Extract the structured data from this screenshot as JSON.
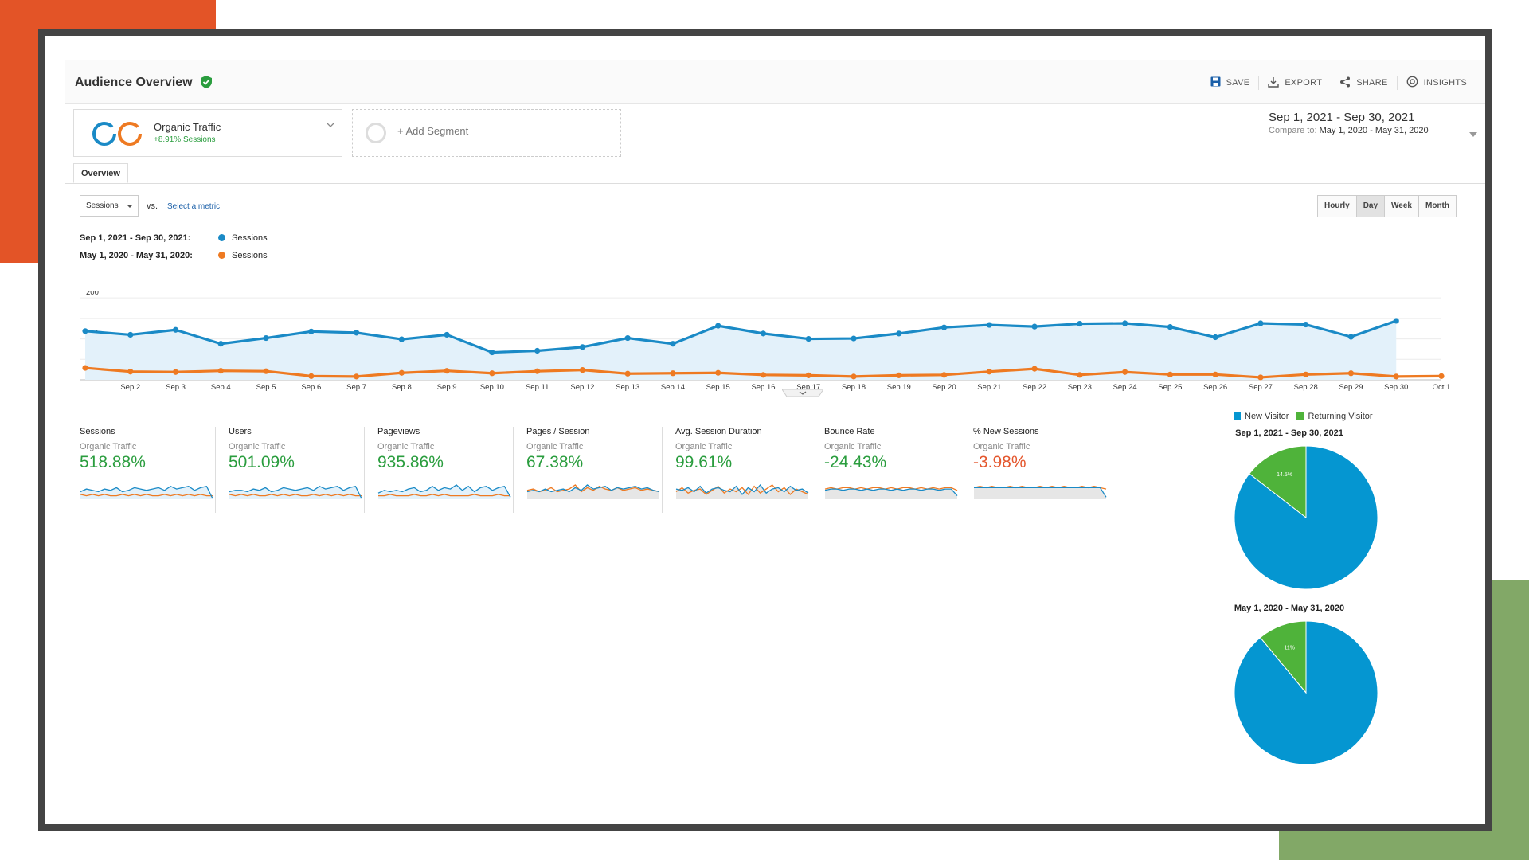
{
  "header": {
    "title": "Audience Overview",
    "toolbar": {
      "save": "SAVE",
      "export": "EXPORT",
      "share": "SHARE",
      "insights": "INSIGHTS"
    }
  },
  "segment": {
    "name": "Organic Traffic",
    "sub": "+8.91% Sessions",
    "add_label": "+ Add Segment"
  },
  "date_range": {
    "main": "Sep 1, 2021 - Sep 30, 2021",
    "compare_label": "Compare to:",
    "compare_value": "May 1, 2020 - May 31, 2020"
  },
  "tabs": [
    {
      "label": "Overview",
      "active": true
    }
  ],
  "controls": {
    "metric": "Sessions",
    "vs": "vs.",
    "select_metric": "Select a metric",
    "time_buttons": [
      {
        "label": "Hourly"
      },
      {
        "label": "Day",
        "active": true
      },
      {
        "label": "Week"
      },
      {
        "label": "Month"
      }
    ]
  },
  "colors": {
    "current": "#1a8ac6",
    "previous": "#ee7a22",
    "new_visitor": "#0596d1",
    "returning_visitor": "#4fb33a",
    "positive": "#2a9d3e",
    "negative": "#e4572e"
  },
  "chart_legend": [
    {
      "period": "Sep 1, 2021 - Sep 30, 2021:",
      "series": "Sessions",
      "color": "#1a8ac6"
    },
    {
      "period": "May 1, 2020 - May 31, 2020:",
      "series": "Sessions",
      "color": "#ee7a22"
    }
  ],
  "chart_data": [
    {
      "type": "line",
      "categories": [
        "...",
        "Sep 2",
        "Sep 3",
        "Sep 4",
        "Sep 5",
        "Sep 6",
        "Sep 7",
        "Sep 8",
        "Sep 9",
        "Sep 10",
        "Sep 11",
        "Sep 12",
        "Sep 13",
        "Sep 14",
        "Sep 15",
        "Sep 16",
        "Sep 17",
        "Sep 18",
        "Sep 19",
        "Sep 20",
        "Sep 21",
        "Sep 22",
        "Sep 23",
        "Sep 24",
        "Sep 25",
        "Sep 26",
        "Sep 27",
        "Sep 28",
        "Sep 29",
        "Sep 30",
        "Oct 1"
      ],
      "y_ticks": [
        100,
        200
      ],
      "ylim": [
        0,
        210
      ],
      "series": [
        {
          "name": "Sessions",
          "period": "Sep 1, 2021 - Sep 30, 2021",
          "color": "#1a8ac6",
          "values": [
            119,
            110,
            122,
            88,
            102,
            118,
            115,
            99,
            110,
            67,
            71,
            80,
            102,
            88,
            132,
            113,
            100,
            101,
            113,
            128,
            134,
            130,
            137,
            138,
            129,
            104,
            138,
            135,
            105,
            144,
            null
          ]
        },
        {
          "name": "Sessions",
          "period": "May 1, 2020 - May 31, 2020",
          "color": "#ee7a22",
          "values": [
            29,
            20,
            19,
            22,
            21,
            9,
            8,
            17,
            22,
            16,
            21,
            24,
            15,
            16,
            17,
            12,
            11,
            8,
            11,
            12,
            20,
            27,
            12,
            19,
            13,
            13,
            6,
            13,
            16,
            8,
            9
          ]
        }
      ]
    },
    {
      "type": "pie",
      "title": "Sep 1, 2021 - Sep 30, 2021",
      "slices": [
        {
          "label": "New Visitor",
          "value": 85.5,
          "text": "85.5%"
        },
        {
          "label": "Returning Visitor",
          "value": 14.5,
          "text": "14.5%"
        }
      ]
    },
    {
      "type": "pie",
      "title": "May 1, 2020 - May 31, 2020",
      "slices": [
        {
          "label": "New Visitor",
          "value": 89,
          "text": "89%"
        },
        {
          "label": "Returning Visitor",
          "value": 11,
          "text": "11%"
        }
      ]
    }
  ],
  "pie_legend": [
    {
      "label": "New Visitor",
      "color": "#0596d1"
    },
    {
      "label": "Returning Visitor",
      "color": "#4fb33a"
    }
  ],
  "pie_titles": [
    "Sep 1, 2021 - Sep 30, 2021",
    "May 1, 2020 - May 31, 2020"
  ],
  "scorecards": [
    {
      "name": "Sessions",
      "segment": "Organic Traffic",
      "value": "518.88%",
      "positive": true
    },
    {
      "name": "Users",
      "segment": "Organic Traffic",
      "value": "501.09%",
      "positive": true
    },
    {
      "name": "Pageviews",
      "segment": "Organic Traffic",
      "value": "935.86%",
      "positive": true
    },
    {
      "name": "Pages / Session",
      "segment": "Organic Traffic",
      "value": "67.38%",
      "positive": true
    },
    {
      "name": "Avg. Session Duration",
      "segment": "Organic Traffic",
      "value": "99.61%",
      "positive": true
    },
    {
      "name": "Bounce Rate",
      "segment": "Organic Traffic",
      "value": "-24.43%",
      "positive": true
    },
    {
      "name": "% New Sessions",
      "segment": "Organic Traffic",
      "value": "-3.98%",
      "positive": false
    }
  ]
}
